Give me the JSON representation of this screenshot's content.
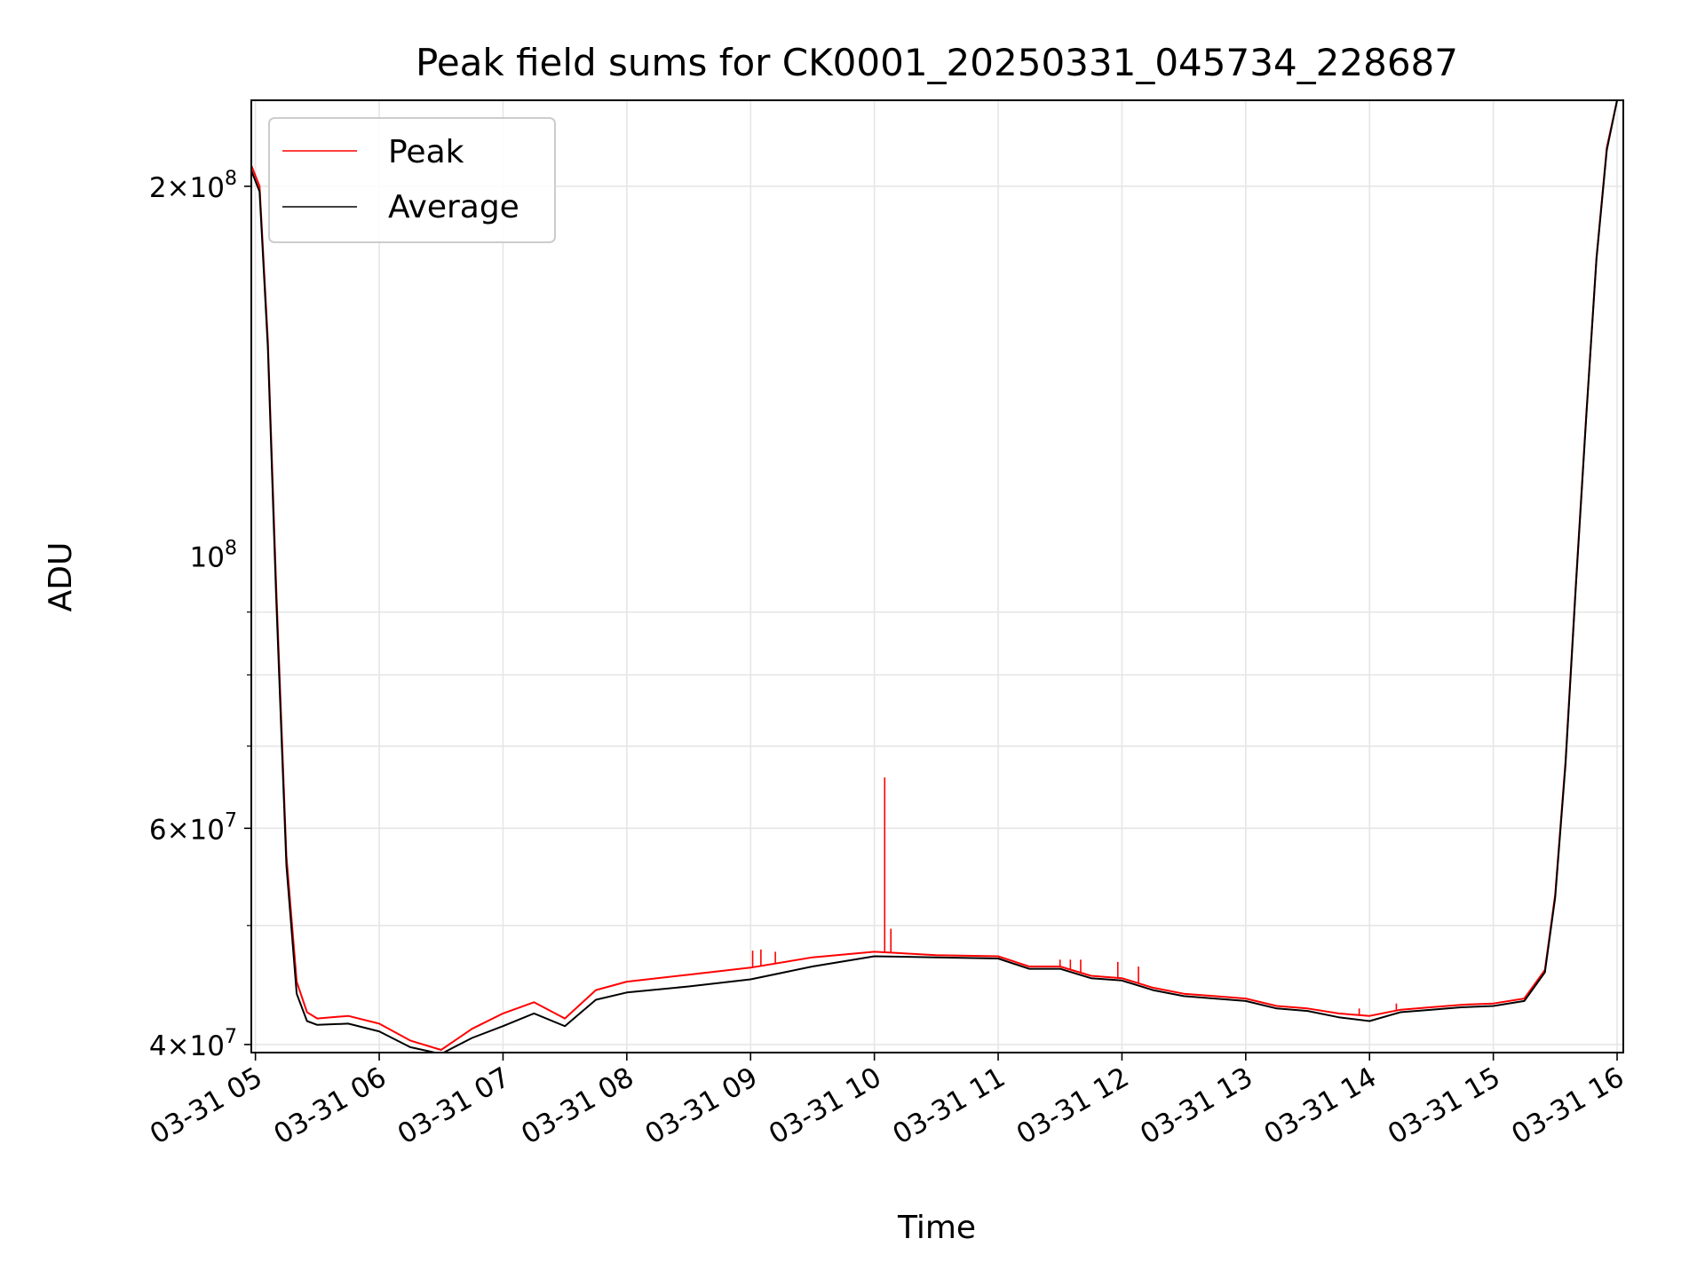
{
  "chart_data": {
    "type": "line",
    "title": "Peak field sums for CK0001_20250331_045734_228687",
    "xlabel": "Time",
    "ylabel": "ADU",
    "y_scale": "log",
    "ylim": [
      39400000,
      235000000
    ],
    "xlim": [
      "03-31 04:58",
      "03-31 16:03"
    ],
    "grid": true,
    "legend_position": "upper-left",
    "x_ticks": [
      "03-31 05",
      "03-31 06",
      "03-31 07",
      "03-31 08",
      "03-31 09",
      "03-31 10",
      "03-31 11",
      "03-31 12",
      "03-31 13",
      "03-31 14",
      "03-31 15",
      "03-31 16"
    ],
    "y_ticks": [
      {
        "value": 40000000,
        "mantissa": "4",
        "exponent": "7"
      },
      {
        "value": 60000000,
        "mantissa": "6",
        "exponent": "7"
      },
      {
        "value": 100000000,
        "mantissa": "",
        "exponent": "8"
      },
      {
        "value": 200000000,
        "mantissa": "2",
        "exponent": "8"
      }
    ],
    "series": [
      {
        "name": "Peak",
        "color": "#ff0000",
        "x": [
          "03-31 04:58",
          "03-31 05:02",
          "03-31 05:06",
          "03-31 05:10",
          "03-31 05:15",
          "03-31 05:20",
          "03-31 05:25",
          "03-31 05:30",
          "03-31 05:45",
          "03-31 06:00",
          "03-31 06:15",
          "03-31 06:30",
          "03-31 06:45",
          "03-31 07:00",
          "03-31 07:15",
          "03-31 07:30",
          "03-31 07:45",
          "03-31 08:00",
          "03-31 08:30",
          "03-31 09:00",
          "03-31 09:30",
          "03-31 10:00",
          "03-31 10:30",
          "03-31 11:00",
          "03-31 11:15",
          "03-31 11:30",
          "03-31 11:45",
          "03-31 12:00",
          "03-31 12:15",
          "03-31 12:30",
          "03-31 12:45",
          "03-31 13:00",
          "03-31 13:15",
          "03-31 13:30",
          "03-31 13:45",
          "03-31 14:00",
          "03-31 14:15",
          "03-31 14:30",
          "03-31 14:45",
          "03-31 15:00",
          "03-31 15:15",
          "03-31 15:25",
          "03-31 15:30",
          "03-31 15:35",
          "03-31 15:40",
          "03-31 15:45",
          "03-31 15:50",
          "03-31 15:55",
          "03-31 16:00",
          "03-31 16:03"
        ],
        "y": [
          208000000,
          200000000,
          150000000,
          95000000,
          57000000,
          45000000,
          42500000,
          42000000,
          42200000,
          41600000,
          40300000,
          39600000,
          41200000,
          42400000,
          43300000,
          42000000,
          44300000,
          45000000,
          45600000,
          46200000,
          47100000,
          47600000,
          47300000,
          47200000,
          46300000,
          46300000,
          45500000,
          45300000,
          44500000,
          44000000,
          43800000,
          43600000,
          43000000,
          42800000,
          42400000,
          42200000,
          42700000,
          42900000,
          43100000,
          43200000,
          43600000,
          46000000,
          53000000,
          68000000,
          95000000,
          130000000,
          175000000,
          215000000,
          235000000,
          235000000
        ]
      },
      {
        "name": "Average",
        "color": "#000000",
        "x": [
          "03-31 04:58",
          "03-31 05:02",
          "03-31 05:06",
          "03-31 05:10",
          "03-31 05:15",
          "03-31 05:20",
          "03-31 05:25",
          "03-31 05:30",
          "03-31 05:45",
          "03-31 06:00",
          "03-31 06:15",
          "03-31 06:30",
          "03-31 06:45",
          "03-31 07:00",
          "03-31 07:15",
          "03-31 07:30",
          "03-31 07:45",
          "03-31 08:00",
          "03-31 08:30",
          "03-31 09:00",
          "03-31 09:30",
          "03-31 10:00",
          "03-31 10:30",
          "03-31 11:00",
          "03-31 11:15",
          "03-31 11:30",
          "03-31 11:45",
          "03-31 12:00",
          "03-31 12:15",
          "03-31 12:30",
          "03-31 12:45",
          "03-31 13:00",
          "03-31 13:15",
          "03-31 13:30",
          "03-31 13:45",
          "03-31 14:00",
          "03-31 14:15",
          "03-31 14:30",
          "03-31 14:45",
          "03-31 15:00",
          "03-31 15:15",
          "03-31 15:25",
          "03-31 15:30",
          "03-31 15:35",
          "03-31 15:40",
          "03-31 15:45",
          "03-31 15:50",
          "03-31 15:55",
          "03-31 16:00",
          "03-31 16:03"
        ],
        "y": [
          206000000,
          198000000,
          148000000,
          93000000,
          56000000,
          44000000,
          41800000,
          41500000,
          41600000,
          41000000,
          39800000,
          39300000,
          40500000,
          41400000,
          42400000,
          41400000,
          43500000,
          44100000,
          44600000,
          45200000,
          46300000,
          47200000,
          47100000,
          47000000,
          46100000,
          46100000,
          45300000,
          45100000,
          44300000,
          43800000,
          43600000,
          43400000,
          42800000,
          42600000,
          42100000,
          41800000,
          42500000,
          42700000,
          42900000,
          43000000,
          43400000,
          45800000,
          52700000,
          67600000,
          94500000,
          129500000,
          174500000,
          214000000,
          235000000,
          235000000
        ]
      }
    ],
    "spikes": [
      {
        "series": "Peak",
        "x": "03-31 09:01",
        "y": 47700000
      },
      {
        "series": "Peak",
        "x": "03-31 09:05",
        "y": 47800000
      },
      {
        "series": "Peak",
        "x": "03-31 09:12",
        "y": 47600000
      },
      {
        "series": "Peak",
        "x": "03-31 10:05",
        "y": 66000000
      },
      {
        "series": "Peak",
        "x": "03-31 10:08",
        "y": 49700000
      },
      {
        "series": "Peak",
        "x": "03-31 11:30",
        "y": 46900000
      },
      {
        "series": "Peak",
        "x": "03-31 11:35",
        "y": 46900000
      },
      {
        "series": "Peak",
        "x": "03-31 11:40",
        "y": 46900000
      },
      {
        "series": "Peak",
        "x": "03-31 11:58",
        "y": 46700000
      },
      {
        "series": "Peak",
        "x": "03-31 12:08",
        "y": 46300000
      },
      {
        "series": "Peak",
        "x": "03-31 13:55",
        "y": 42800000
      },
      {
        "series": "Peak",
        "x": "03-31 14:13",
        "y": 43200000
      }
    ]
  }
}
